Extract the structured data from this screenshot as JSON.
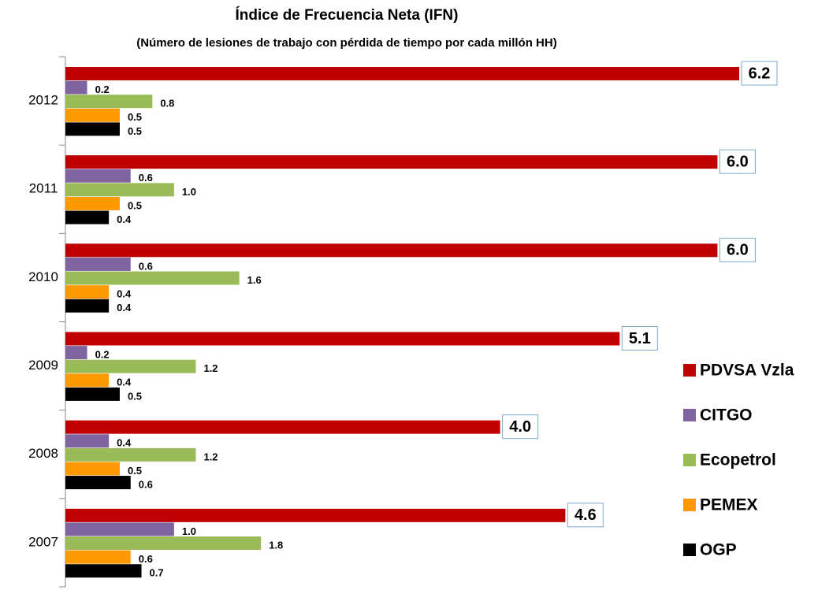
{
  "chart_data": {
    "type": "hbar",
    "title": "Índice de Frecuencia Neta (IFN)",
    "subtitle": "(Número de lesiones de trabajo con pérdida de tiempo por cada millón HH)",
    "categories": [
      "2012",
      "2011",
      "2010",
      "2009",
      "2008",
      "2007"
    ],
    "legend": "right",
    "series": [
      {
        "name": "PDVSA Vzla",
        "color": "#c00000",
        "values": [
          6.2,
          6.0,
          6.0,
          5.1,
          4.0,
          4.6
        ],
        "value_labels": [
          "6.2",
          "6.0",
          "6.0",
          "5.1",
          "4.0",
          "4.6"
        ]
      },
      {
        "name": "CITGO",
        "color": "#8064a2",
        "values": [
          0.2,
          0.6,
          0.6,
          0.2,
          0.4,
          1.0
        ],
        "value_labels": [
          "0.2",
          "0.6",
          "0.6",
          "0.2",
          "0.4",
          "1.0"
        ]
      },
      {
        "name": "Ecopetrol",
        "color": "#9bbb59",
        "values": [
          0.8,
          1.0,
          1.6,
          1.2,
          1.2,
          1.8
        ],
        "value_labels": [
          "0.8",
          "1.0",
          "1.6",
          "1.2",
          "1.2",
          "1.8"
        ]
      },
      {
        "name": "PEMEX",
        "color": "#ff9900",
        "values": [
          0.5,
          0.5,
          0.4,
          0.4,
          0.5,
          0.6
        ],
        "value_labels": [
          "0.5",
          "0.5",
          "0.4",
          "0.4",
          "0.5",
          "0.6"
        ]
      },
      {
        "name": "OGP",
        "color": "#000000",
        "values": [
          0.5,
          0.4,
          0.4,
          0.5,
          0.6,
          0.7
        ],
        "value_labels": [
          "0.5",
          "0.4",
          "0.4",
          "0.5",
          "0.6",
          "0.7"
        ]
      }
    ]
  }
}
